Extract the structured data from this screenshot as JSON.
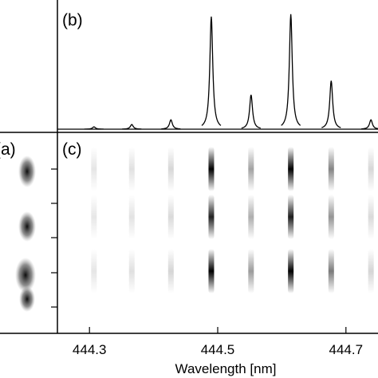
{
  "chart_data": {
    "type": "line",
    "panel_labels": [
      "(a)",
      "(b)",
      "(c)"
    ],
    "x_label": "Wavelength [nm]",
    "xlim": [
      444.25,
      444.75
    ],
    "xticks": [
      444.3,
      444.5,
      444.7
    ],
    "ylim": [
      0,
      155
    ],
    "peaks": {
      "centers": [
        444.307,
        444.366,
        444.427,
        444.49,
        444.552,
        444.614,
        444.677,
        444.739
      ],
      "amplitudes": [
        3,
        6,
        12,
        144,
        44,
        147,
        62,
        12
      ]
    },
    "color": "#000000"
  }
}
